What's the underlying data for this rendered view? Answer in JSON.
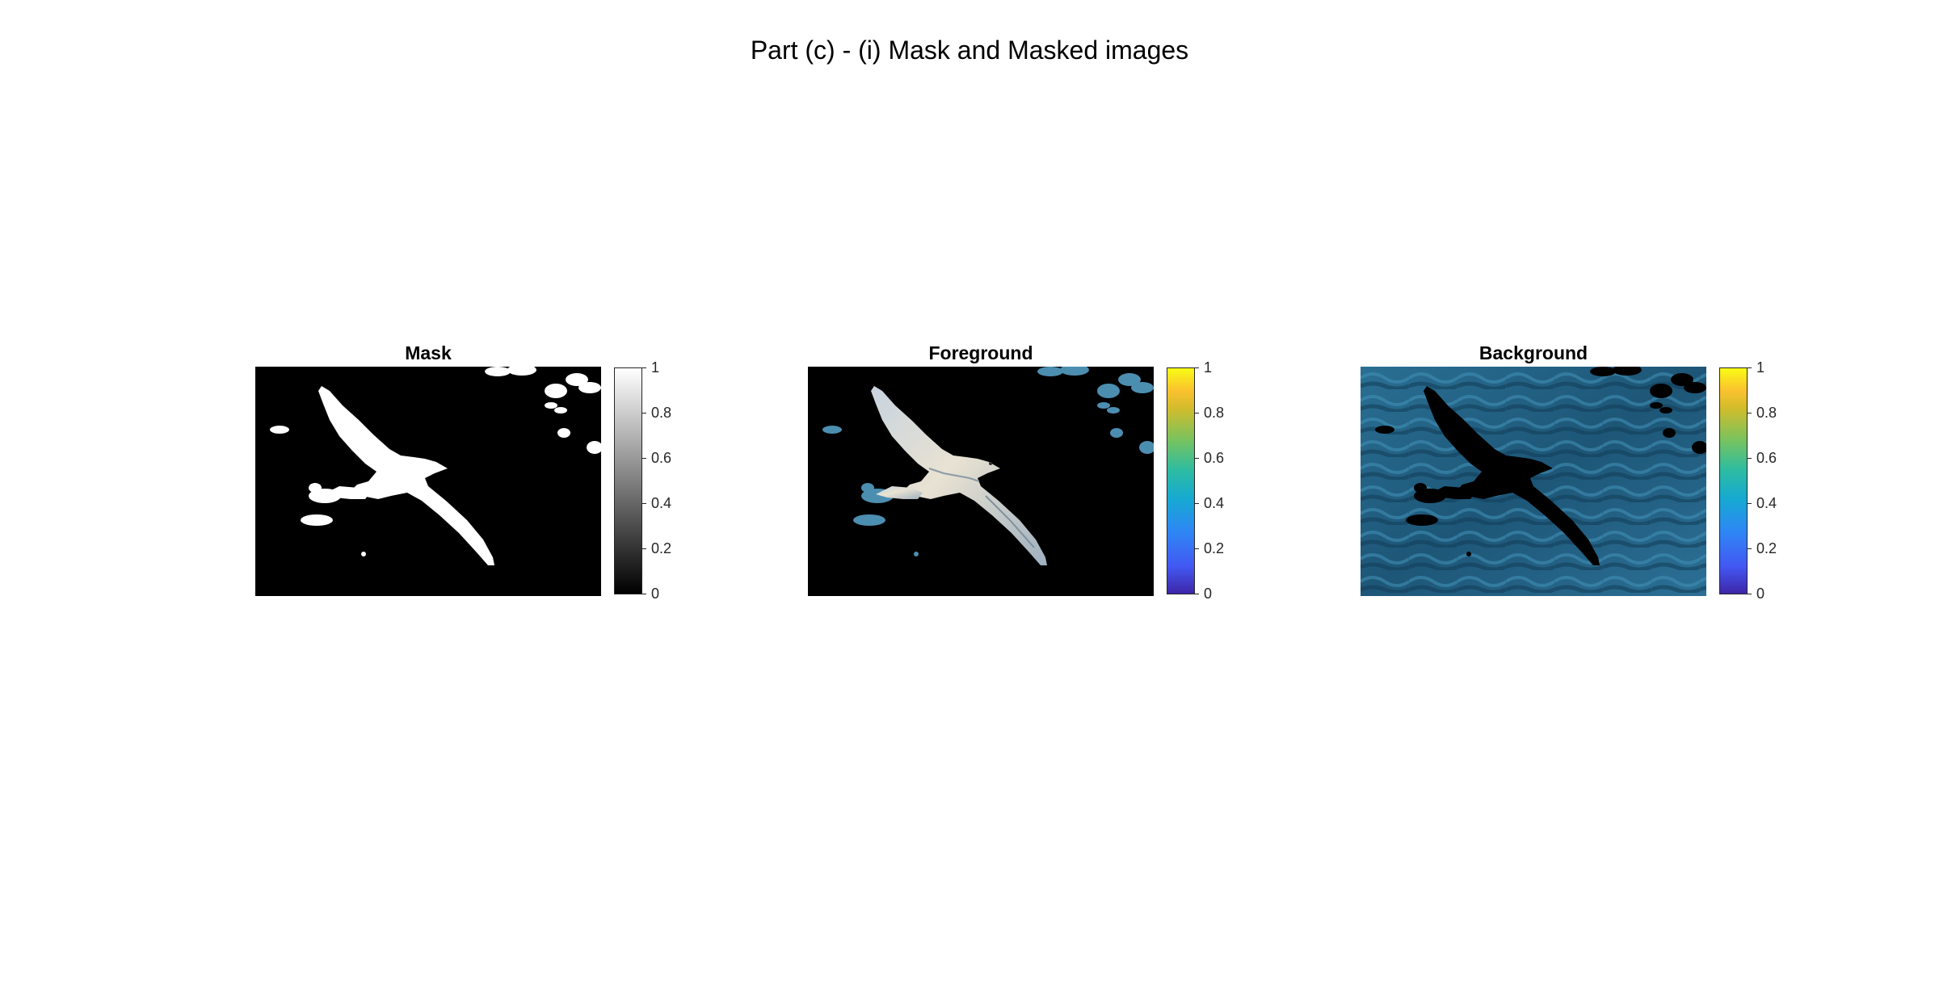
{
  "figure": {
    "title": "Part (c) - (i) Mask and Masked images"
  },
  "panels": [
    {
      "title": "Mask",
      "image": "binary mask of bird silhouette",
      "colormap": "gray"
    },
    {
      "title": "Foreground",
      "image": "bird with background masked out",
      "colormap": "parula"
    },
    {
      "title": "Background",
      "image": "ocean water with bird masked out",
      "colormap": "parula"
    }
  ],
  "colorbar_ticks": [
    "0",
    "0.2",
    "0.4",
    "0.6",
    "0.8",
    "1"
  ],
  "colors": {
    "ocean": "#1f5b7c",
    "mask": "#ffffff",
    "background": "#000000"
  }
}
